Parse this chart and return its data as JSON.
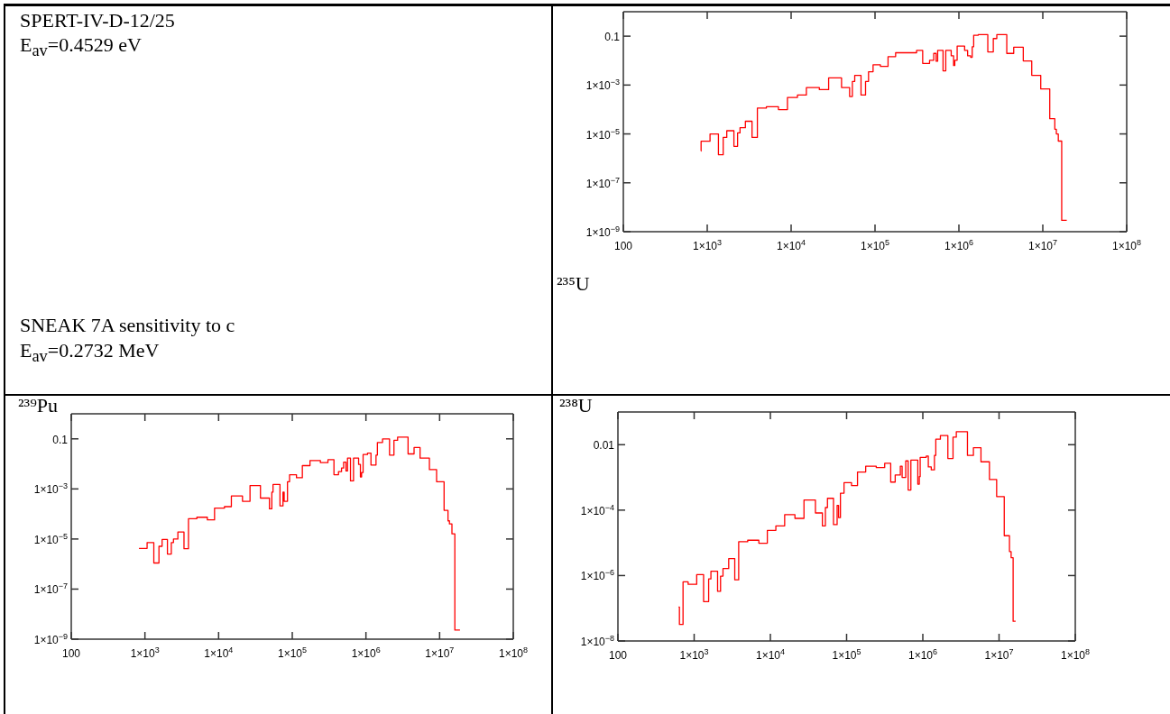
{
  "chart_data": [
    {
      "type": "other",
      "annotations": [
        "SPERT-IV-D-12/25",
        "E$_{av}$=0.4529 eV",
        "SNEAK 7A sensitivity to c",
        "E$_{av}$=0.2732 MeV"
      ]
    },
    {
      "type": "step",
      "title": "²³⁵U",
      "color": "#ff0000",
      "log": "xy",
      "xlim": [
        100,
        100000000
      ],
      "ylim": [
        1e-09,
        1
      ],
      "xticks": [
        {
          "value": 100,
          "label": "100"
        },
        {
          "value": 1000,
          "label": "1×10$^{3}$"
        },
        {
          "value": 10000,
          "label": "1×10$^{4}$"
        },
        {
          "value": 100000,
          "label": "1×10$^{5}$"
        },
        {
          "value": 1000000,
          "label": "1×10$^{6}$"
        },
        {
          "value": 10000000,
          "label": "1×10$^{7}$"
        },
        {
          "value": 100000000,
          "label": "1×10$^{8}$"
        }
      ],
      "yticks": [
        {
          "value": 1e-09,
          "label": "1×10$^{−9}$"
        },
        {
          "value": 1e-07,
          "label": "1×10$^{−7}$"
        },
        {
          "value": 1e-05,
          "label": "1×10$^{−5}$"
        },
        {
          "value": 0.001,
          "label": "1×10$^{−3}$"
        },
        {
          "value": 0.1,
          "label": "0.1"
        }
      ],
      "x": [
        840,
        845,
        1080,
        1360,
        1550,
        1710,
        2080,
        2300,
        2460,
        2850,
        3420,
        3960,
        5070,
        7060,
        9040,
        11900,
        15200,
        21700,
        28000,
        39900,
        49800,
        53700,
        57300,
        68100,
        77100,
        83700,
        94800,
        116000,
        143000,
        176000,
        313000,
        370000,
        447000,
        501000,
        535000,
        558000,
        647000,
        697000,
        809000,
        864000,
        893000,
        953000,
        1170000,
        1270000,
        1380000,
        1440000,
        1500000,
        1700000,
        2210000,
        2570000,
        2830000,
        3720000,
        4500000,
        5850000,
        7380000,
        9450000,
        12100000,
        13900000,
        14500000,
        15300000,
        16800000,
        19300000
      ],
      "values": [
        2e-06,
        5e-06,
        1e-05,
        1.4e-06,
        7.2e-06,
        1.35e-05,
        3.1e-06,
        1.1e-05,
        1.8e-05,
        3.3e-05,
        7.2e-06,
        0.000114,
        0.00013,
        9.9e-05,
        0.00031,
        0.00039,
        0.00079,
        0.00065,
        0.00197,
        0.00079,
        0.00034,
        0.0014,
        0.0025,
        0.00039,
        0.0014,
        0.0035,
        0.0067,
        0.0058,
        0.0145,
        0.021,
        0.026,
        0.0077,
        0.0103,
        0.0197,
        0.0094,
        0.026,
        0.0038,
        0.026,
        0.0157,
        0.0063,
        0.0103,
        0.039,
        0.026,
        0.0157,
        0.0136,
        0.037,
        0.109,
        0.115,
        0.0227,
        0.08,
        0.115,
        0.0197,
        0.035,
        0.0097,
        0.0025,
        0.00069,
        4.2e-05,
        1.56e-05,
        1e-05,
        5.1e-06,
        2.9e-09,
        2.9e-09
      ]
    },
    {
      "type": "step",
      "title": "²³⁹Pu",
      "color": "#ff0000",
      "log": "xy",
      "xlim": [
        100,
        100000000
      ],
      "ylim": [
        1e-09,
        1
      ],
      "xticks": [
        {
          "value": 100,
          "label": "100"
        },
        {
          "value": 1000,
          "label": "1×10$^{3}$"
        },
        {
          "value": 10000,
          "label": "1×10$^{4}$"
        },
        {
          "value": 100000,
          "label": "1×10$^{5}$"
        },
        {
          "value": 1000000,
          "label": "1×10$^{6}$"
        },
        {
          "value": 10000000,
          "label": "1×10$^{7}$"
        },
        {
          "value": 100000000,
          "label": "1×10$^{8}$"
        }
      ],
      "yticks": [
        {
          "value": 1e-09,
          "label": "1×10$^{−9}$"
        },
        {
          "value": 1e-07,
          "label": "1×10$^{−7}$"
        },
        {
          "value": 1e-05,
          "label": "1×10$^{−5}$"
        },
        {
          "value": 0.001,
          "label": "1×10$^{−3}$"
        },
        {
          "value": 0.1,
          "label": "0.1"
        }
      ],
      "x": [
        830,
        1070,
        1320,
        1550,
        1710,
        2020,
        2280,
        2440,
        2800,
        3390,
        3900,
        5070,
        7030,
        8810,
        12000,
        14900,
        21100,
        26700,
        37000,
        49000,
        52800,
        54800,
        68100,
        74800,
        77600,
        86100,
        91900,
        114000,
        137000,
        174000,
        241000,
        305000,
        368000,
        424000,
        466000,
        498000,
        536000,
        562000,
        617000,
        678000,
        795000,
        841000,
        873000,
        915000,
        1050000,
        1170000,
        1370000,
        1430000,
        1680000,
        2090000,
        2400000,
        2690000,
        3730000,
        4500000,
        5430000,
        7270000,
        9100000,
        11500000,
        13000000,
        13600000,
        14700000,
        16100000,
        18900000
      ],
      "values": [
        4.2e-06,
        7.2e-06,
        1.1e-06,
        5.1e-06,
        9.6e-06,
        2.5e-06,
        7.2e-06,
        1e-05,
        1.9e-05,
        4.1e-06,
        6.5e-05,
        7.4e-05,
        5.8e-05,
        0.00017,
        0.000196,
        0.00052,
        0.00032,
        0.00136,
        0.00043,
        0.00016,
        0.00074,
        0.0015,
        0.00021,
        0.00074,
        0.00032,
        0.00195,
        0.0037,
        0.0028,
        0.0085,
        0.0136,
        0.0112,
        0.0148,
        0.0037,
        0.0049,
        0.0068,
        0.0118,
        0.0052,
        0.017,
        0.0021,
        0.017,
        0.0095,
        0.003,
        0.0045,
        0.0237,
        0.027,
        0.009,
        0.0224,
        0.0717,
        0.1,
        0.0224,
        0.087,
        0.118,
        0.025,
        0.0448,
        0.017,
        0.0059,
        0.00195,
        0.00014,
        5.3e-05,
        4e-05,
        1.6e-05,
        2.3e-09,
        2.3e-09
      ]
    },
    {
      "type": "step",
      "title": "²³⁸U",
      "color": "#ff0000",
      "log": "xy",
      "xlim": [
        100,
        100000000
      ],
      "ylim": [
        1e-08,
        0.1
      ],
      "xticks": [
        {
          "value": 100,
          "label": "100"
        },
        {
          "value": 1000,
          "label": "1×10$^{3}$"
        },
        {
          "value": 10000,
          "label": "1×10$^{4}$"
        },
        {
          "value": 100000,
          "label": "1×10$^{5}$"
        },
        {
          "value": 1000000,
          "label": "1×10$^{6}$"
        },
        {
          "value": 10000000,
          "label": "1×10$^{7}$"
        },
        {
          "value": 100000000,
          "label": "1×10$^{8}$"
        }
      ],
      "yticks": [
        {
          "value": 1e-08,
          "label": "1×10$^{−8}$"
        },
        {
          "value": 1e-06,
          "label": "1×10$^{−6}$"
        },
        {
          "value": 0.0001,
          "label": "1×10$^{−4}$"
        },
        {
          "value": 0.01,
          "label": "0.01"
        }
      ],
      "x": [
        624,
        641,
        715,
        834,
        1080,
        1330,
        1550,
        1660,
        2030,
        2220,
        2390,
        2840,
        3410,
        3840,
        5040,
        7060,
        9120,
        11800,
        15400,
        21000,
        27600,
        39000,
        48100,
        52700,
        56100,
        67300,
        75100,
        78500,
        83000,
        92500,
        116000,
        139000,
        178000,
        245000,
        316000,
        379000,
        434000,
        507000,
        535000,
        597000,
        642000,
        697000,
        859000,
        899000,
        923000,
        1110000,
        1180000,
        1290000,
        1420000,
        1480000,
        1700000,
        2130000,
        2490000,
        2750000,
        3850000,
        4610000,
        5790000,
        7480000,
        9300000,
        11700000,
        13700000,
        14400000,
        15300000,
        16500000
      ],
      "values": [
        1.09e-07,
        3.2e-08,
        6.4e-07,
        5.4e-07,
        1.07e-06,
        1.6e-07,
        7.9e-07,
        1.36e-06,
        3.3e-07,
        9.6e-07,
        1.64e-06,
        3.3e-06,
        7.4e-07,
        1.08e-05,
        1.2e-05,
        9.7e-06,
        2.4e-05,
        3.3e-05,
        7.3e-05,
        5.6e-05,
        0.000205,
        8.2e-05,
        3.3e-05,
        0.00012,
        0.00023,
        3.6e-05,
        0.00014,
        5.9e-05,
        0.00033,
        0.00069,
        0.00056,
        0.00146,
        0.0022,
        0.002,
        0.0027,
        0.00072,
        0.00118,
        0.0022,
        0.001,
        0.0032,
        0.00041,
        0.0034,
        0.00062,
        0.00106,
        0.0041,
        0.0045,
        0.0021,
        0.0017,
        0.0047,
        0.0147,
        0.019,
        0.0038,
        0.017,
        0.025,
        0.0047,
        0.0081,
        0.003,
        0.00086,
        0.00026,
        1.65e-05,
        5.4e-06,
        3.5e-06,
        4e-08,
        4e-08
      ]
    }
  ]
}
